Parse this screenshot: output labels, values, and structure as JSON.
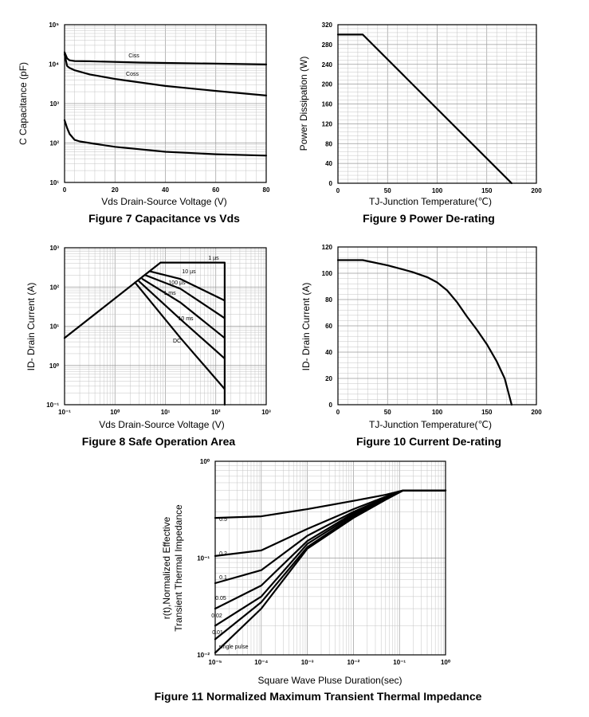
{
  "chart_data": [
    {
      "id": "fig7",
      "type": "line",
      "title": "Figure 7 Capacitance vs Vds",
      "xlabel": "Vds Drain-Source Voltage (V)",
      "ylabel": "C Capacitance (pF)",
      "xscale": "linear",
      "yscale": "log",
      "xlim": [
        0,
        80
      ],
      "ylim": [
        10,
        100000
      ],
      "xticks": [
        "0",
        "20",
        "40",
        "60",
        "80"
      ],
      "yticks": [
        "10¹",
        "10²",
        "10³",
        "10⁴",
        "10⁵"
      ],
      "grid": true,
      "series": [
        {
          "name": "Ciss",
          "x": [
            0,
            1,
            2,
            4,
            10,
            30,
            60,
            80
          ],
          "y": [
            20000,
            14000,
            12500,
            12000,
            11800,
            11000,
            10300,
            9800
          ]
        },
        {
          "name": "Coss",
          "x": [
            0,
            1,
            2,
            4,
            10,
            20,
            40,
            60,
            80
          ],
          "y": [
            18000,
            9000,
            8000,
            7000,
            5500,
            4200,
            2800,
            2100,
            1600
          ]
        },
        {
          "name": "",
          "x": [
            0,
            1,
            2,
            4,
            6,
            10,
            20,
            40,
            60,
            80
          ],
          "y": [
            380,
            240,
            170,
            120,
            110,
            100,
            80,
            60,
            52,
            48
          ]
        }
      ]
    },
    {
      "id": "fig9",
      "type": "line",
      "title": "Figure 9 Power De-rating",
      "xlabel": "TJ-Junction Temperature(℃)",
      "ylabel": "Power Dissipation (W)",
      "xscale": "linear",
      "yscale": "linear",
      "xlim": [
        0,
        200
      ],
      "ylim": [
        0,
        320
      ],
      "xticks": [
        "0",
        "50",
        "100",
        "150",
        "200"
      ],
      "yticks": [
        "0",
        "40",
        "80",
        "120",
        "160",
        "200",
        "240",
        "280",
        "320"
      ],
      "grid": true,
      "series": [
        {
          "name": "",
          "x": [
            0,
            25,
            175
          ],
          "y": [
            300,
            300,
            0
          ]
        }
      ]
    },
    {
      "id": "fig8",
      "type": "line",
      "title": "Figure 8 Safe Operation Area",
      "xlabel": "Vds Drain-Source Voltage (V)",
      "ylabel": "ID- Drain Current (A)",
      "xscale": "log",
      "yscale": "log",
      "xlim": [
        0.1,
        1000
      ],
      "ylim": [
        0.1,
        1000
      ],
      "xticks": [
        "10⁻¹",
        "10⁰",
        "10¹",
        "10²",
        "10³"
      ],
      "yticks": [
        "10⁻¹",
        "10⁰",
        "10¹",
        "10²",
        "10³"
      ],
      "grid": true,
      "series": [
        {
          "name": "1 µs",
          "x": [
            0.1,
            8,
            150,
            150
          ],
          "y": [
            5,
            420,
            420,
            0.1
          ]
        },
        {
          "name": "10 µs",
          "x": [
            5,
            20,
            150
          ],
          "y": [
            250,
            160,
            45
          ]
        },
        {
          "name": "100 µs",
          "x": [
            4,
            20,
            150
          ],
          "y": [
            200,
            90,
            16
          ]
        },
        {
          "name": "1 ms",
          "x": [
            3.5,
            20,
            150
          ],
          "y": [
            160,
            40,
            5
          ]
        },
        {
          "name": "10 ms",
          "x": [
            3,
            20,
            150
          ],
          "y": [
            140,
            15,
            1.5
          ]
        },
        {
          "name": "DC",
          "x": [
            2.5,
            20,
            150
          ],
          "y": [
            130,
            5,
            0.25
          ]
        }
      ]
    },
    {
      "id": "fig10",
      "type": "line",
      "title": "Figure 10 Current De-rating",
      "xlabel": "TJ-Junction Temperature(℃)",
      "ylabel": "ID- Drain Current (A)",
      "xscale": "linear",
      "yscale": "linear",
      "xlim": [
        0,
        200
      ],
      "ylim": [
        0,
        120
      ],
      "xticks": [
        "0",
        "50",
        "100",
        "150",
        "200"
      ],
      "yticks": [
        "0",
        "20",
        "40",
        "60",
        "80",
        "100",
        "120"
      ],
      "grid": true,
      "series": [
        {
          "name": "",
          "x": [
            0,
            25,
            50,
            75,
            90,
            100,
            110,
            120,
            130,
            140,
            150,
            160,
            168,
            175
          ],
          "y": [
            110,
            110,
            106,
            101,
            97,
            93,
            87,
            78,
            67,
            57,
            46,
            33,
            20,
            0
          ]
        }
      ]
    },
    {
      "id": "fig11",
      "type": "line",
      "title": "Figure 11 Normalized Maximum Transient Thermal Impedance",
      "xlabel": "Square Wave Pluse Duration(sec)",
      "ylabel": [
        "r(t),Normalized Effective",
        "Transient Thermal Impedance"
      ],
      "xscale": "log",
      "yscale": "log",
      "xlim": [
        1e-05,
        1
      ],
      "ylim": [
        0.01,
        1
      ],
      "xticks": [
        "10⁻⁵",
        "10⁻⁴",
        "10⁻³",
        "10⁻²",
        "10⁻¹",
        "10⁰"
      ],
      "yticks": [
        "10⁻²",
        "10⁻¹",
        "10⁰"
      ],
      "grid": true,
      "series": [
        {
          "name": "0.5",
          "x": [
            1e-05,
            0.0001,
            0.001,
            0.01,
            0.05,
            0.12,
            1
          ],
          "y": [
            0.26,
            0.27,
            0.32,
            0.39,
            0.45,
            0.5,
            0.5
          ]
        },
        {
          "name": "0.2",
          "x": [
            1e-05,
            0.0001,
            0.001,
            0.01,
            0.05,
            0.12,
            1
          ],
          "y": [
            0.105,
            0.12,
            0.2,
            0.32,
            0.43,
            0.5,
            0.5
          ]
        },
        {
          "name": "0.1",
          "x": [
            1e-05,
            0.0001,
            0.001,
            0.01,
            0.05,
            0.12,
            1
          ],
          "y": [
            0.055,
            0.075,
            0.17,
            0.3,
            0.42,
            0.5,
            0.5
          ]
        },
        {
          "name": "0.05",
          "x": [
            1e-05,
            0.0001,
            0.001,
            0.01,
            0.05,
            0.12,
            1
          ],
          "y": [
            0.03,
            0.052,
            0.15,
            0.29,
            0.42,
            0.5,
            0.5
          ]
        },
        {
          "name": "0.02",
          "x": [
            1e-05,
            0.0001,
            0.001,
            0.01,
            0.05,
            0.12,
            1
          ],
          "y": [
            0.02,
            0.04,
            0.14,
            0.28,
            0.41,
            0.5,
            0.5
          ]
        },
        {
          "name": "0.01",
          "x": [
            1e-05,
            0.0001,
            0.001,
            0.01,
            0.05,
            0.12,
            1
          ],
          "y": [
            0.0145,
            0.035,
            0.13,
            0.27,
            0.41,
            0.5,
            0.5
          ]
        },
        {
          "name": "single pulse",
          "x": [
            1e-05,
            0.0001,
            0.001,
            0.01,
            0.05,
            0.12,
            1
          ],
          "y": [
            0.0105,
            0.03,
            0.125,
            0.26,
            0.4,
            0.5,
            0.5
          ]
        }
      ]
    }
  ]
}
